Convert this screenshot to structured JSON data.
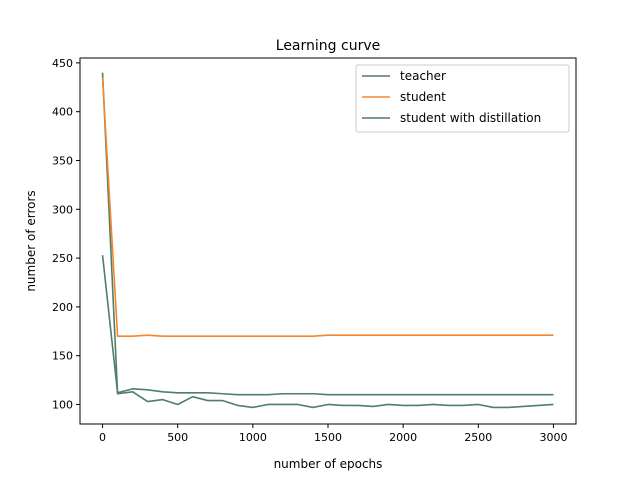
{
  "chart_data": {
    "type": "line",
    "title": "Learning curve",
    "xlabel": "number of epochs",
    "ylabel": "number of errors",
    "xlim": [
      -150,
      3150
    ],
    "ylim": [
      80,
      455
    ],
    "xticks": [
      0,
      500,
      1000,
      1500,
      2000,
      2500,
      3000
    ],
    "yticks": [
      100,
      150,
      200,
      250,
      300,
      350,
      400,
      450
    ],
    "grid": false,
    "legend_position": "top-right",
    "series": [
      {
        "name": "teacher",
        "color": "#4f7f68",
        "x": [
          0,
          100,
          200,
          300,
          400,
          500,
          600,
          700,
          800,
          900,
          1000,
          1100,
          1200,
          1300,
          1400,
          1500,
          1600,
          1700,
          1800,
          1900,
          2000,
          2100,
          2200,
          2300,
          2400,
          2500,
          2600,
          2700,
          2800,
          2900,
          3000
        ],
        "y": [
          440,
          111,
          113,
          103,
          105,
          100,
          108,
          104,
          104,
          99,
          97,
          100,
          100,
          100,
          97,
          100,
          99,
          99,
          98,
          100,
          99,
          99,
          100,
          99,
          99,
          100,
          97,
          97,
          98,
          99,
          100
        ]
      },
      {
        "name": "student",
        "color": "#f5862d",
        "x": [
          0,
          100,
          200,
          300,
          400,
          500,
          600,
          700,
          800,
          900,
          1000,
          1100,
          1200,
          1300,
          1400,
          1500,
          1600,
          1700,
          1800,
          1900,
          2000,
          2100,
          2200,
          2300,
          2400,
          2500,
          2600,
          2700,
          2800,
          2900,
          3000
        ],
        "y": [
          435,
          170,
          170,
          171,
          170,
          170,
          170,
          170,
          170,
          170,
          170,
          170,
          170,
          170,
          170,
          171,
          171,
          171,
          171,
          171,
          171,
          171,
          171,
          171,
          171,
          171,
          171,
          171,
          171,
          171,
          171
        ]
      },
      {
        "name": "student with distillation",
        "color": "#4f7f68",
        "x": [
          0,
          100,
          200,
          300,
          400,
          500,
          600,
          700,
          800,
          900,
          1000,
          1100,
          1200,
          1300,
          1400,
          1500,
          1600,
          1700,
          1800,
          1900,
          2000,
          2100,
          2200,
          2300,
          2400,
          2500,
          2600,
          2700,
          2800,
          2900,
          3000
        ],
        "y": [
          253,
          112,
          116,
          115,
          113,
          112,
          112,
          112,
          111,
          110,
          110,
          110,
          111,
          111,
          111,
          110,
          110,
          110,
          110,
          110,
          110,
          110,
          110,
          110,
          110,
          110,
          110,
          110,
          110,
          110,
          110
        ]
      }
    ]
  }
}
